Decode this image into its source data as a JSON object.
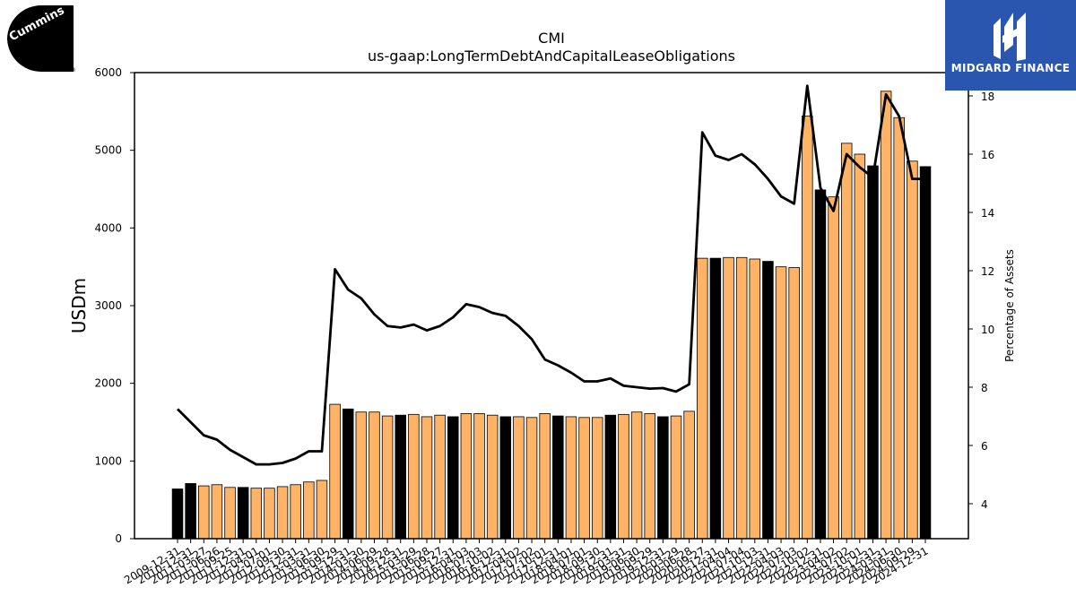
{
  "logos": {
    "left_brand": "Cummins",
    "right_brand": "MIDGARD FINANCE",
    "colors": {
      "left_bg": "#000000",
      "right_bg": "#2a56b0"
    }
  },
  "chart_data": {
    "type": "bar",
    "title": "CMI",
    "subtitle": "us-gaap:LongTermDebtAndCapitalLeaseObligations",
    "ylabel": "USDm",
    "y2label": "Percentage of Assets",
    "ylim": [
      0,
      6000
    ],
    "y2lim": [
      2.8,
      18.8
    ],
    "yticks": [
      0,
      1000,
      2000,
      3000,
      4000,
      5000,
      6000
    ],
    "y2ticks": [
      4,
      6,
      8,
      10,
      12,
      14,
      16,
      18
    ],
    "colors": {
      "annual_bar": "#000000",
      "quarter_bar": "#ffb366",
      "line": "#000000"
    },
    "categories": [
      "2009-12-31",
      "2010-12-31",
      "2011-03-27",
      "2011-06-26",
      "2011-09-25",
      "2011-12-31",
      "2012-04-01",
      "2012-07-01",
      "2012-09-30",
      "2012-12-31",
      "2013-03-31",
      "2013-06-30",
      "2013-09-29",
      "2013-12-31",
      "2014-03-30",
      "2014-06-29",
      "2014-09-28",
      "2014-12-31",
      "2015-03-29",
      "2015-06-28",
      "2015-09-27",
      "2015-12-31",
      "2016-04-03",
      "2016-07-03",
      "2016-10-02",
      "2016-12-31",
      "2017-04-02",
      "2017-07-02",
      "2017-10-01",
      "2017-12-31",
      "2018-04-01",
      "2018-07-01",
      "2018-09-30",
      "2018-12-31",
      "2019-03-31",
      "2019-06-30",
      "2019-09-29",
      "2019-12-31",
      "2020-03-29",
      "2020-06-28",
      "2020-09-27",
      "2020-12-31",
      "2021-04-04",
      "2021-07-04",
      "2021-10-03",
      "2021-12-31",
      "2022-04-03",
      "2022-07-03",
      "2022-10-02",
      "2022-12-31",
      "2023-04-02",
      "2023-07-02",
      "2023-10-01",
      "2023-12-31",
      "2024-03-31",
      "2024-06-30",
      "2024-09-29",
      "2024-12-31"
    ],
    "series": [
      {
        "name": "",
        "period": [
          "FY",
          "FY",
          "Q",
          "Q",
          "Q",
          "FY",
          "Q",
          "Q",
          "Q",
          "Q",
          "Q",
          "Q",
          "Q",
          "FY",
          "Q",
          "Q",
          "Q",
          "FY",
          "Q",
          "Q",
          "Q",
          "FY",
          "Q",
          "Q",
          "Q",
          "FY",
          "Q",
          "Q",
          "Q",
          "FY",
          "Q",
          "Q",
          "Q",
          "FY",
          "Q",
          "Q",
          "Q",
          "FY",
          "Q",
          "Q",
          "Q",
          "FY",
          "Q",
          "Q",
          "Q",
          "FY",
          "Q",
          "Q",
          "Q",
          "FY",
          "Q",
          "Q",
          "Q",
          "FY",
          "Q",
          "Q",
          "Q",
          "FY"
        ],
        "values": [
          640,
          710,
          680,
          695,
          660,
          660,
          650,
          650,
          670,
          695,
          730,
          750,
          1730,
          1670,
          1630,
          1630,
          1580,
          1590,
          1600,
          1570,
          1590,
          1570,
          1610,
          1610,
          1590,
          1570,
          1570,
          1560,
          1610,
          1580,
          1570,
          1560,
          1560,
          1590,
          1600,
          1630,
          1610,
          1570,
          1580,
          1640,
          3610,
          3610,
          3620,
          3620,
          3600,
          3570,
          3500,
          3490,
          5440,
          4490,
          4400,
          5090,
          4950,
          4800,
          5760,
          5420,
          4860,
          4790
        ]
      },
      {
        "name": "Percentage of Assets",
        "axis": "right",
        "values": [
          7.25,
          6.8,
          6.35,
          6.2,
          5.85,
          5.6,
          5.35,
          5.35,
          5.4,
          5.55,
          5.8,
          5.8,
          12.05,
          11.35,
          11.05,
          10.5,
          10.1,
          10.05,
          10.15,
          9.95,
          10.1,
          10.4,
          10.85,
          10.75,
          10.55,
          10.45,
          10.1,
          9.65,
          8.95,
          8.75,
          8.5,
          8.2,
          8.2,
          8.3,
          8.05,
          8.0,
          7.95,
          7.97,
          7.85,
          8.1,
          16.75,
          15.95,
          15.8,
          16.0,
          15.65,
          15.15,
          14.55,
          14.3,
          18.35,
          14.85,
          14.05,
          16.0,
          15.55,
          15.2,
          18.05,
          17.3,
          15.15,
          15.15
        ]
      }
    ],
    "grid": false,
    "legend": "none"
  }
}
